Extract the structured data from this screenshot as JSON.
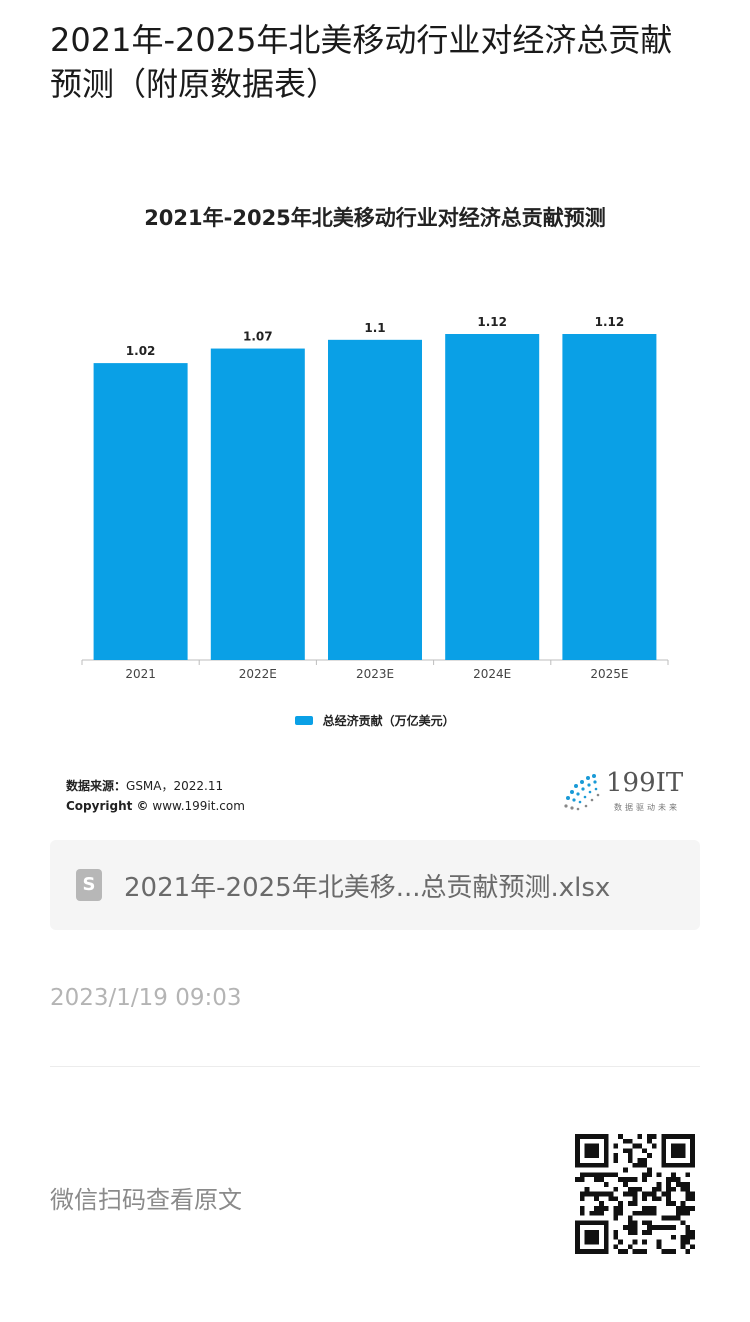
{
  "page": {
    "title": "2021年-2025年北美移动行业对经济总贡献预测（附原数据表）",
    "attachment_name": "2021年-2025年北美移...总贡献预测.xlsx",
    "timestamp": "2023/1/19 09:03",
    "read_original": "微信扫码查看原文",
    "file_icon_letter": "S"
  },
  "figure": {
    "source_label": "数据来源：",
    "source_value": "GSMA，2022.11",
    "copyright_label": "Copyright ©",
    "copyright_value": "www.199it.com",
    "logo_text": "199IT",
    "logo_subtext": "数据驱动未来"
  },
  "chart_data": {
    "type": "bar",
    "title": "2021年-2025年北美移动行业对经济总贡献预测",
    "categories": [
      "2021",
      "2022E",
      "2023E",
      "2024E",
      "2025E"
    ],
    "series": [
      {
        "name": "总经济贡献（万亿美元）",
        "values": [
          1.02,
          1.07,
          1.1,
          1.12,
          1.12
        ],
        "color": "#0aa0e6"
      }
    ],
    "value_labels": [
      "1.02",
      "1.07",
      "1.1",
      "1.12",
      "1.12"
    ],
    "ylim": [
      0,
      1.12
    ],
    "grid": false,
    "legend_position": "bottom"
  }
}
